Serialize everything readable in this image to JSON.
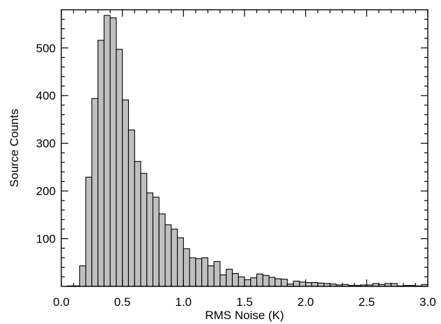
{
  "chart_data": {
    "type": "bar",
    "title": "",
    "xlabel": "RMS Noise (K)",
    "ylabel": "Source Counts",
    "xlim": [
      0.0,
      3.0
    ],
    "ylim": [
      0,
      580
    ],
    "bin_width": 0.05,
    "grid": false,
    "legend": "none",
    "bar_fill": "#c0c0c0",
    "bar_stroke": "#000000",
    "x_ticks": [
      {
        "value": 0.0,
        "label": "0.0"
      },
      {
        "value": 0.5,
        "label": "0.5"
      },
      {
        "value": 1.0,
        "label": "1.0"
      },
      {
        "value": 1.5,
        "label": "1.5"
      },
      {
        "value": 2.0,
        "label": "2.0"
      },
      {
        "value": 2.5,
        "label": "2.5"
      },
      {
        "value": 3.0,
        "label": "3.0"
      }
    ],
    "y_ticks": [
      {
        "value": 100,
        "label": "100"
      },
      {
        "value": 200,
        "label": "200"
      },
      {
        "value": 300,
        "label": "300"
      },
      {
        "value": 400,
        "label": "400"
      },
      {
        "value": 500,
        "label": "500"
      }
    ],
    "bins": [
      0.05,
      0.1,
      0.15,
      0.2,
      0.25,
      0.3,
      0.35,
      0.4,
      0.45,
      0.5,
      0.55,
      0.6,
      0.65,
      0.7,
      0.75,
      0.8,
      0.85,
      0.9,
      0.95,
      1.0,
      1.05,
      1.1,
      1.15,
      1.2,
      1.25,
      1.3,
      1.35,
      1.4,
      1.45,
      1.5,
      1.55,
      1.6,
      1.65,
      1.7,
      1.75,
      1.8,
      1.85,
      1.9,
      1.95,
      2.0,
      2.05,
      2.1,
      2.15,
      2.2,
      2.25,
      2.3,
      2.35,
      2.4,
      2.45,
      2.5,
      2.55,
      2.6,
      2.65,
      2.7,
      2.75,
      2.8,
      2.85,
      2.9,
      2.95
    ],
    "values": [
      1,
      1,
      43,
      229,
      394,
      516,
      568,
      563,
      497,
      391,
      328,
      262,
      237,
      196,
      187,
      152,
      129,
      120,
      102,
      79,
      60,
      58,
      60,
      43,
      52,
      24,
      36,
      27,
      20,
      14,
      18,
      26,
      23,
      19,
      16,
      15,
      5,
      11,
      9,
      8,
      8,
      7,
      6,
      5,
      3,
      4,
      2,
      2,
      3,
      3,
      6,
      4,
      6,
      6,
      1,
      2,
      2,
      1,
      4
    ]
  }
}
